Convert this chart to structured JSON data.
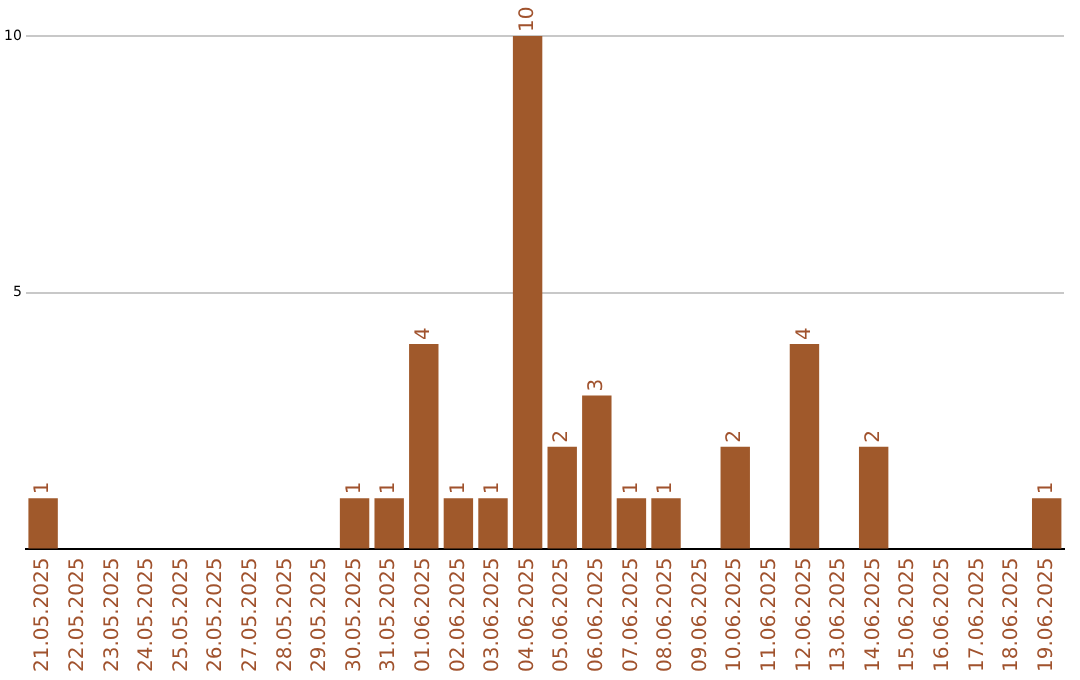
{
  "chart_data": {
    "type": "bar",
    "categories": [
      "21.05.2025",
      "22.05.2025",
      "23.05.2025",
      "24.05.2025",
      "25.05.2025",
      "26.05.2025",
      "27.05.2025",
      "28.05.2025",
      "29.05.2025",
      "30.05.2025",
      "31.05.2025",
      "01.06.2025",
      "02.06.2025",
      "03.06.2025",
      "04.06.2025",
      "05.06.2025",
      "06.06.2025",
      "07.06.2025",
      "08.06.2025",
      "09.06.2025",
      "10.06.2025",
      "11.06.2025",
      "12.06.2025",
      "13.06.2025",
      "14.06.2025",
      "15.06.2025",
      "16.06.2025",
      "17.06.2025",
      "18.06.2025",
      "19.06.2025"
    ],
    "values": [
      1,
      0,
      0,
      0,
      0,
      0,
      0,
      0,
      0,
      1,
      1,
      4,
      1,
      1,
      10,
      2,
      3,
      1,
      1,
      0,
      2,
      0,
      4,
      0,
      2,
      0,
      0,
      0,
      0,
      1
    ],
    "value_labels": [
      "1",
      null,
      null,
      null,
      null,
      null,
      null,
      null,
      null,
      "1",
      "1",
      "4",
      "1",
      "1",
      "10",
      "2",
      "3",
      "1",
      "1",
      null,
      "2",
      null,
      "4",
      null,
      "2",
      null,
      null,
      null,
      null,
      "1"
    ],
    "color": "#a0592b",
    "ylim": [
      0,
      10
    ],
    "yticks": [
      {
        "value": 0,
        "label": null
      },
      5,
      10
    ],
    "grid": "y",
    "legend": false
  }
}
